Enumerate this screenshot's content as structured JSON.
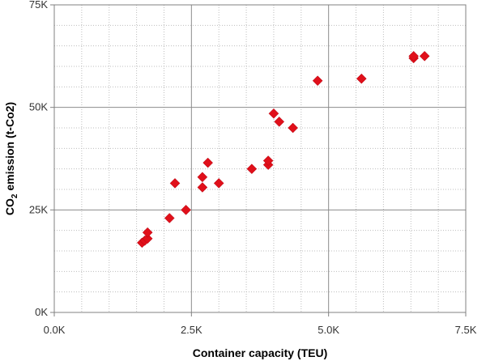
{
  "chart_data": {
    "type": "scatter",
    "xlabel": "Container capacity  (TEU)",
    "ylabel": {
      "prefix": "CO",
      "subscript": "2",
      "suffix": " emission (t-Co2)"
    },
    "xlim": [
      0,
      7500
    ],
    "ylim": [
      0,
      75000
    ],
    "x_ticks": [
      {
        "value": 0,
        "label": "0.0K"
      },
      {
        "value": 2500,
        "label": "2.5K"
      },
      {
        "value": 5000,
        "label": "5.0K"
      },
      {
        "value": 7500,
        "label": "7.5K"
      }
    ],
    "y_ticks": [
      {
        "value": 0,
        "label": "0K"
      },
      {
        "value": 25000,
        "label": "25K"
      },
      {
        "value": 50000,
        "label": "50K"
      },
      {
        "value": 75000,
        "label": "75K"
      }
    ],
    "grid": {
      "major": true,
      "minor": true,
      "minor_per_major": 5
    },
    "legend": "none",
    "marker": {
      "shape": "diamond",
      "color": "#e0101a"
    },
    "points": [
      {
        "x": 1600,
        "y": 17000
      },
      {
        "x": 1650,
        "y": 17500
      },
      {
        "x": 1700,
        "y": 18000
      },
      {
        "x": 1700,
        "y": 19500
      },
      {
        "x": 2100,
        "y": 23000
      },
      {
        "x": 2200,
        "y": 31500
      },
      {
        "x": 2400,
        "y": 25000
      },
      {
        "x": 2700,
        "y": 30500
      },
      {
        "x": 2700,
        "y": 33000
      },
      {
        "x": 2800,
        "y": 36500
      },
      {
        "x": 3000,
        "y": 31500
      },
      {
        "x": 3600,
        "y": 35000
      },
      {
        "x": 3900,
        "y": 36000
      },
      {
        "x": 3900,
        "y": 37000
      },
      {
        "x": 4000,
        "y": 48500
      },
      {
        "x": 4100,
        "y": 46500
      },
      {
        "x": 4350,
        "y": 45000
      },
      {
        "x": 4800,
        "y": 56500
      },
      {
        "x": 5600,
        "y": 57000
      },
      {
        "x": 6550,
        "y": 62000
      },
      {
        "x": 6550,
        "y": 62500
      },
      {
        "x": 6750,
        "y": 62500
      }
    ]
  }
}
